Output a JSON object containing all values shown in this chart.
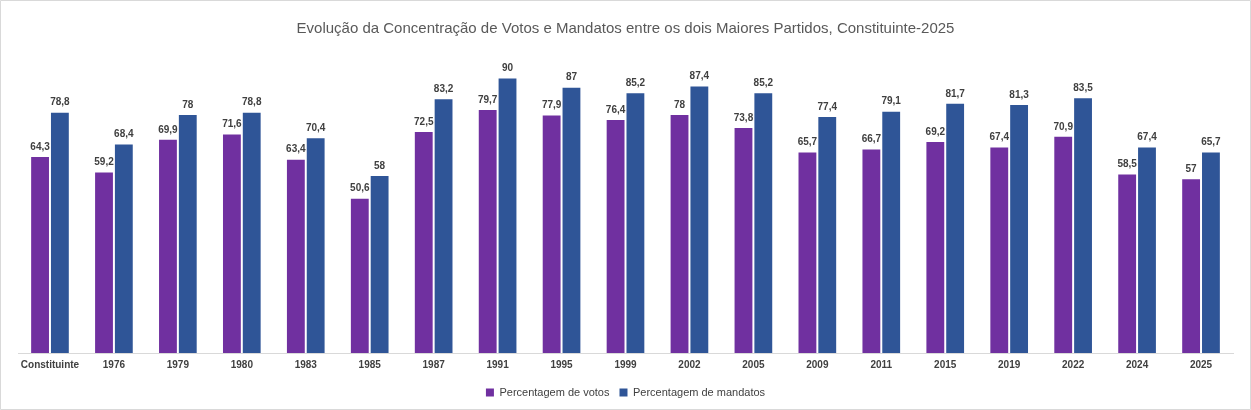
{
  "chart_data": {
    "type": "bar",
    "title": "Evolução da Concentração de Votos e Mandatos entre os dois Maiores Partidos, Constituinte-2025",
    "categories": [
      "Constituinte",
      "1976",
      "1979",
      "1980",
      "1983",
      "1985",
      "1987",
      "1991",
      "1995",
      "1999",
      "2002",
      "2005",
      "2009",
      "2011",
      "2015",
      "2019",
      "2022",
      "2024",
      "2025"
    ],
    "series": [
      {
        "name": "Percentagem de votos",
        "color": "#7030a0",
        "values": [
          64.3,
          59.2,
          69.9,
          71.6,
          63.4,
          50.6,
          72.5,
          79.7,
          77.9,
          76.4,
          78,
          73.8,
          65.7,
          66.7,
          69.2,
          67.4,
          70.9,
          58.5,
          57
        ],
        "value_labels": [
          "64,3",
          "59,2",
          "69,9",
          "71,6",
          "63,4",
          "50,6",
          "72,5",
          "79,7",
          "77,9",
          "76,4",
          "78",
          "73,8",
          "65,7",
          "66,7",
          "69,2",
          "67,4",
          "70,9",
          "58,5",
          "57"
        ]
      },
      {
        "name": "Percentagem de mandatos",
        "color": "#2f5597",
        "values": [
          78.8,
          68.4,
          78,
          78.8,
          70.4,
          58,
          83.2,
          90,
          87,
          85.2,
          87.4,
          85.2,
          77.4,
          79.1,
          81.7,
          81.3,
          83.5,
          67.4,
          65.7
        ],
        "value_labels": [
          "78,8",
          "68,4",
          "78",
          "78,8",
          "70,4",
          "58",
          "83,2",
          "90",
          "87",
          "85,2",
          "87,4",
          "85,2",
          "77,4",
          "79,1",
          "81,7",
          "81,3",
          "83,5",
          "67,4",
          "65,7"
        ]
      }
    ],
    "grid": false,
    "legend": "bottom",
    "tick_labels": "x"
  }
}
